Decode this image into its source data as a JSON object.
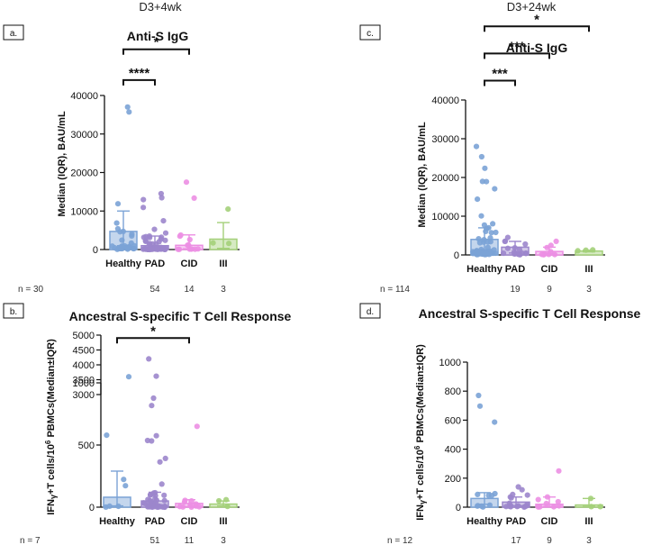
{
  "column_titles": [
    "D3+4wk",
    "D3+24wk"
  ],
  "chart_data": [
    {
      "panel": "a.",
      "type": "scatter",
      "title": "Anti-S IgG",
      "ylabel": "Median (IQR), BAU/mL",
      "ylim": [
        0,
        40000
      ],
      "yticks": [
        0,
        10000,
        20000,
        30000,
        40000
      ],
      "categories": [
        "Healthy",
        "PAD",
        "CID",
        "III"
      ],
      "n_prefix": "n = ",
      "n": [
        "30",
        "54",
        "14",
        "3"
      ],
      "colors": [
        "#7ba3d6",
        "#9c86cc",
        "#ec8fe3",
        "#a4d07a"
      ],
      "median": [
        4700,
        1000,
        1100,
        2700
      ],
      "q1": [
        1000,
        200,
        200,
        300
      ],
      "q3": [
        10000,
        3500,
        3800,
        7000
      ],
      "max": [
        37000,
        14500,
        17500,
        10500
      ],
      "comparisons": [
        {
          "from": 0,
          "to": 1,
          "label": "****",
          "y": 44000
        },
        {
          "from": 0,
          "to": 2,
          "label": "*",
          "y": 52000
        }
      ]
    },
    {
      "panel": "c.",
      "type": "scatter",
      "title": "Anti-S IgG",
      "ylabel": "Median (IQR), BAU/mL",
      "ylim": [
        0,
        40000
      ],
      "yticks": [
        0,
        10000,
        20000,
        30000,
        40000
      ],
      "categories": [
        "Healthy",
        "PAD",
        "CID",
        "III"
      ],
      "n_prefix": "n = ",
      "n": [
        "114",
        "19",
        "9",
        "3"
      ],
      "colors": [
        "#7ba3d6",
        "#9c86cc",
        "#ec8fe3",
        "#a4d07a"
      ],
      "median": [
        4000,
        2000,
        900,
        1000
      ],
      "q1": [
        1000,
        500,
        300,
        800
      ],
      "q3": [
        7000,
        3500,
        2000,
        1200
      ],
      "max": [
        28000,
        4500,
        3500,
        1300
      ],
      "comparisons": [
        {
          "from": 0,
          "to": 1,
          "label": "***",
          "y": 45000
        },
        {
          "from": 0,
          "to": 2,
          "label": "***",
          "y": 52000
        },
        {
          "from": 0,
          "to": 3,
          "label": "*",
          "y": 59000
        }
      ]
    },
    {
      "panel": "b.",
      "type": "scatter",
      "title": "Ancestral S-specific T Cell Response",
      "ylabel": "IFN",
      "ylabel_parts": [
        "IFN",
        "γ",
        "+T cells/10",
        "6",
        " PBMCs(Median±IQR)"
      ],
      "broken_axis": true,
      "ylim_lower": [
        0,
        1000
      ],
      "ylim_upper": [
        3000,
        5000
      ],
      "yticks_lower": [
        0,
        500,
        1000
      ],
      "yticks_upper": [
        3000,
        3500,
        4000,
        4500,
        5000
      ],
      "categories": [
        "Healthy",
        "PAD",
        "CID",
        "III"
      ],
      "n_prefix": "n = ",
      "n": [
        "7",
        "51",
        "11",
        "3"
      ],
      "colors": [
        "#7ba3d6",
        "#9c86cc",
        "#ec8fe3",
        "#a4d07a"
      ],
      "median": [
        80,
        50,
        30,
        25
      ],
      "q1": [
        10,
        10,
        5,
        10
      ],
      "q3": [
        290,
        120,
        60,
        50
      ],
      "max": [
        3600,
        4200,
        650,
        60
      ],
      "comparisons": [
        {
          "from": 0,
          "to": 2,
          "label": "*",
          "y": 4900
        }
      ]
    },
    {
      "panel": "d.",
      "type": "scatter",
      "title": "Ancestral S-specific T Cell Response",
      "ylabel": "IFN",
      "ylabel_parts": [
        "IFN",
        "γ",
        "+T cells/10",
        "6",
        " PBMCs(Median±IQR)"
      ],
      "ylim": [
        0,
        1000
      ],
      "yticks": [
        0,
        200,
        400,
        600,
        800,
        1000
      ],
      "categories": [
        "Healthy",
        "PAD",
        "CID",
        "III"
      ],
      "n_prefix": "n = ",
      "n": [
        "12",
        "17",
        "9",
        "3"
      ],
      "colors": [
        "#7ba3d6",
        "#9c86cc",
        "#ec8fe3",
        "#a4d07a"
      ],
      "median": [
        60,
        35,
        20,
        15
      ],
      "q1": [
        20,
        10,
        5,
        5
      ],
      "q3": [
        100,
        70,
        70,
        60
      ],
      "max": [
        770,
        140,
        250,
        60
      ],
      "comparisons": []
    }
  ]
}
